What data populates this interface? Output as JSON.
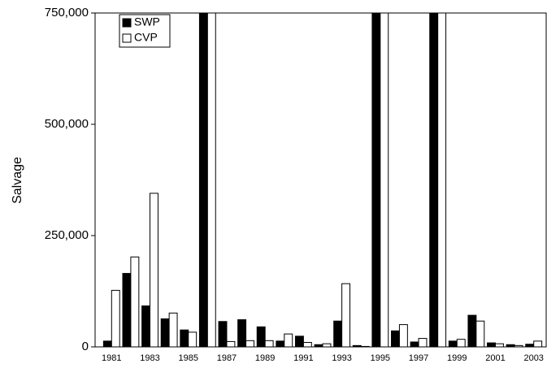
{
  "chart_data": {
    "type": "bar",
    "ylabel": "Salvage",
    "categories": [
      "1981",
      null,
      "1983",
      null,
      "1985",
      null,
      "1987",
      null,
      "1989",
      null,
      "1991",
      null,
      "1993",
      null,
      "1995",
      null,
      "1997",
      null,
      "1999",
      null,
      "2001",
      null,
      "2003"
    ],
    "series": [
      {
        "name": "SWP",
        "color": "#000000",
        "values": [
          13000,
          165000,
          92000,
          63000,
          38000,
          750000,
          57000,
          61000,
          45000,
          13000,
          24000,
          5000,
          58000,
          3000,
          750000,
          36000,
          11000,
          750000,
          13000,
          71000,
          9000,
          5000,
          6000
        ]
      },
      {
        "name": "CVP",
        "color": "#ffffff",
        "values": [
          127000,
          202000,
          345000,
          76000,
          33000,
          750000,
          12000,
          14000,
          14000,
          29000,
          10000,
          7000,
          142000,
          1000,
          750000,
          50000,
          19000,
          750000,
          17000,
          58000,
          7000,
          3000,
          13000
        ]
      }
    ],
    "ylim": [
      0,
      750000
    ],
    "yticks": [
      0,
      {
        "value": 250000,
        "label": "250,000"
      },
      {
        "value": 500000,
        "label": "500,000"
      },
      {
        "value": 750000,
        "label": "750,000"
      }
    ],
    "grid": false,
    "legend": "top-left"
  }
}
